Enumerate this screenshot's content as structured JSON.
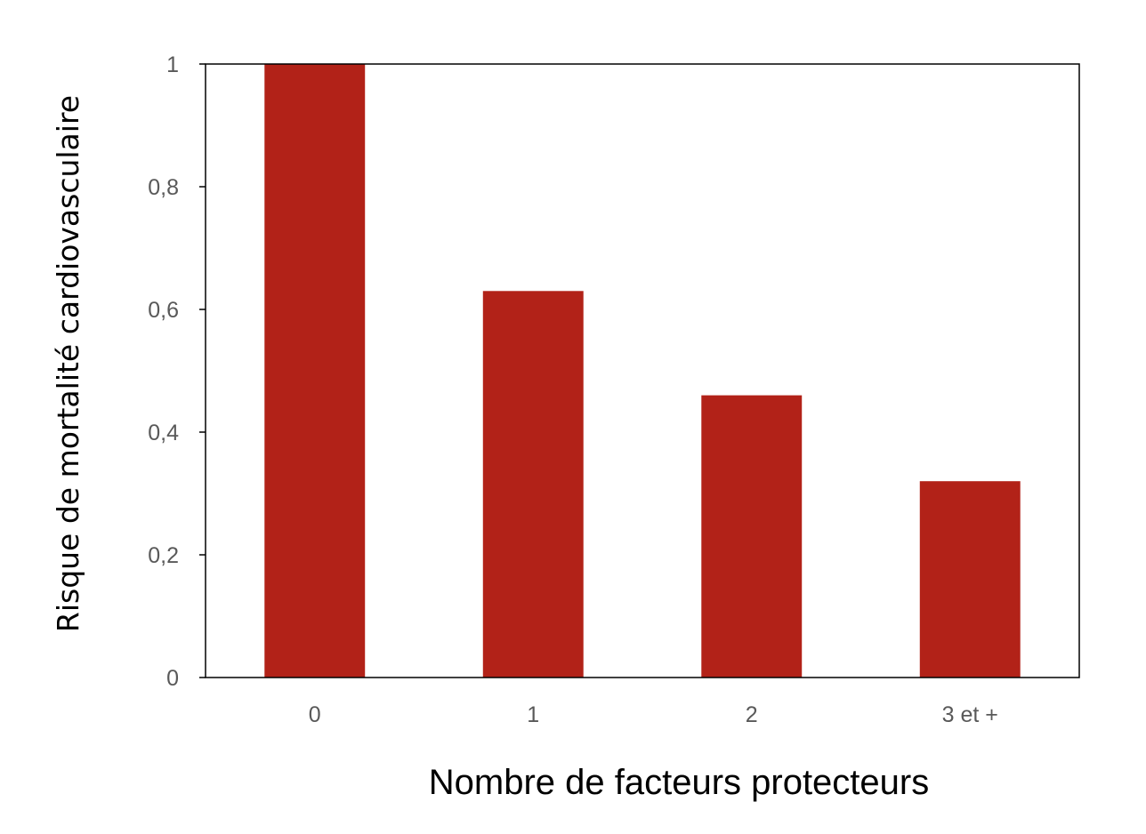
{
  "chart_data": {
    "type": "bar",
    "title": "",
    "xlabel": "Nombre de facteurs protecteurs",
    "ylabel": "Risque de mortalité cardiovasculaire",
    "categories": [
      "0",
      "1",
      "2",
      "3 et +"
    ],
    "values": [
      1.0,
      0.63,
      0.46,
      0.32
    ],
    "ylim": [
      0,
      1
    ],
    "yticks": [
      0,
      0.2,
      0.4,
      0.6,
      0.8,
      1
    ],
    "ytick_labels": [
      "0",
      "0,2",
      "0,4",
      "0,6",
      "0,8",
      "1"
    ],
    "grid": false,
    "legend": "none",
    "colors": {
      "bar": "#b22218",
      "axis": "#000000",
      "tick_text": "#595959"
    }
  }
}
